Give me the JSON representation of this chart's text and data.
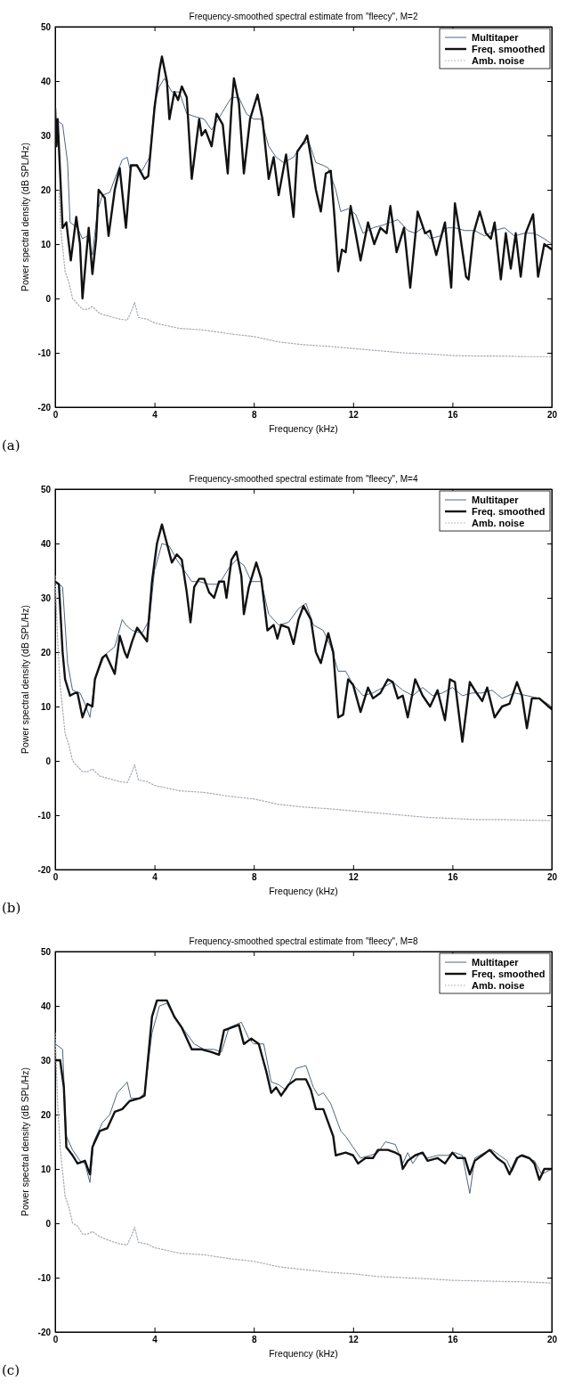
{
  "chart_data": [
    {
      "type": "line",
      "title": "Frequency-smoothed spectral estimate from \"fleecy\", M=2",
      "xlabel": "Frequency (kHz)",
      "ylabel": "Power spectral density (dB SPL/Hz)",
      "annotations": [
        "(a)"
      ],
      "xlim": [
        0,
        20
      ],
      "ylim": [
        -20,
        50
      ],
      "xticks": [
        0,
        4,
        8,
        12,
        16,
        20
      ],
      "yticks": [
        -20,
        -10,
        0,
        10,
        20,
        30,
        40,
        50
      ],
      "legend": "top right",
      "grid": false,
      "series": [
        {
          "name": "Multitaper",
          "color": "#4f6680",
          "line_style": "solid",
          "x": [
            0,
            0.3,
            0.5,
            0.6,
            0.9,
            1.1,
            1.3,
            1.5,
            1.7,
            1.9,
            2.2,
            2.4,
            2.7,
            2.9,
            3.0,
            3.2,
            3.5,
            3.8,
            4.0,
            4.2,
            4.4,
            4.7,
            5.0,
            5.3,
            5.6,
            6.0,
            6.3,
            6.7,
            7.1,
            7.4,
            7.7,
            8.0,
            8.3,
            8.6,
            8.9,
            9.2,
            9.6,
            9.9,
            10.2,
            10.5,
            10.8,
            11.0,
            11.3,
            11.5,
            11.8,
            12.1,
            12.4,
            12.8,
            13.2,
            13.5,
            13.8,
            14.2,
            14.5,
            14.8,
            15.1,
            15.5,
            15.8,
            16.1,
            16.5,
            16.9,
            17.3,
            17.7,
            18.1,
            18.5,
            18.9,
            19.3,
            19.7,
            20
          ],
          "values": [
            33,
            32,
            25,
            14,
            13,
            11,
            11.5,
            8,
            16,
            19,
            19.5,
            22,
            25.5,
            26,
            24,
            24.5,
            23.5,
            26,
            36,
            39,
            40.5,
            38,
            38,
            34,
            33.5,
            33,
            31,
            34,
            37,
            37,
            34,
            33,
            33,
            28,
            26,
            25,
            26,
            28,
            29,
            25,
            24.5,
            24,
            20,
            16,
            16.5,
            15.5,
            12,
            13,
            13.5,
            14,
            14.5,
            12.5,
            12,
            13,
            11,
            11.5,
            13,
            13,
            12.5,
            12.5,
            11.5,
            12.5,
            13,
            11.5,
            12,
            12,
            11,
            10
          ]
        },
        {
          "name": "Freq. smoothed",
          "color": "#111111",
          "line_style": "solid",
          "x": [
            0,
            0.05,
            0.1,
            0.3,
            0.45,
            0.63,
            0.85,
            1.0,
            1.1,
            1.35,
            1.5,
            1.65,
            1.75,
            2.0,
            2.15,
            2.4,
            2.6,
            2.85,
            3.05,
            3.3,
            3.6,
            3.75,
            4.0,
            4.2,
            4.3,
            4.5,
            4.6,
            4.8,
            4.95,
            5.1,
            5.3,
            5.5,
            5.8,
            5.9,
            6.05,
            6.3,
            6.5,
            6.75,
            6.95,
            7.1,
            7.2,
            7.4,
            7.6,
            7.85,
            8.15,
            8.35,
            8.6,
            8.8,
            9.0,
            9.3,
            9.6,
            9.75,
            10.05,
            10.15,
            10.3,
            10.5,
            10.7,
            10.9,
            11.1,
            11.25,
            11.4,
            11.55,
            11.7,
            11.9,
            12.1,
            12.3,
            12.6,
            12.85,
            13.1,
            13.35,
            13.5,
            13.75,
            14.05,
            14.3,
            14.6,
            14.9,
            15.1,
            15.35,
            15.7,
            15.95,
            16.1,
            16.3,
            16.55,
            16.65,
            16.85,
            17.1,
            17.35,
            17.55,
            17.7,
            17.95,
            18.15,
            18.35,
            18.55,
            18.75,
            18.95,
            19.25,
            19.45,
            19.7,
            20
          ],
          "values": [
            35,
            28,
            33,
            13,
            14,
            7,
            15,
            10,
            0,
            13,
            4.5,
            11,
            20,
            18.5,
            11.5,
            20,
            24,
            13,
            24.5,
            24.5,
            22,
            22.5,
            35,
            42,
            44.5,
            40,
            33,
            38,
            36.5,
            39,
            37,
            22,
            33,
            30,
            31,
            28,
            34,
            32,
            23,
            35,
            40.5,
            36,
            23,
            33,
            37.5,
            33,
            22,
            26,
            19,
            26.5,
            15,
            27,
            29,
            30,
            26,
            20,
            16,
            23,
            23.5,
            15,
            5,
            9,
            8.5,
            17,
            12,
            7,
            14,
            10,
            13,
            12,
            17,
            8.5,
            13,
            2,
            16,
            12,
            12.5,
            8,
            14,
            2,
            17.5,
            12,
            4,
            3.5,
            12,
            16,
            12,
            11,
            14,
            3.5,
            12,
            5.5,
            12,
            4,
            12,
            15.5,
            4,
            10,
            9
          ]
        },
        {
          "name": "Amb. noise",
          "color": "#a3aab3",
          "line_style": "dotted",
          "x": [
            0.15,
            0.2,
            0.4,
            0.55,
            0.7,
            0.9,
            1.1,
            1.3,
            1.5,
            1.8,
            2.2,
            2.6,
            2.9,
            3.1,
            3.2,
            3.35,
            3.7,
            4.0,
            5,
            6,
            7,
            8,
            9,
            10,
            11,
            12,
            13,
            14,
            15,
            16,
            17,
            18,
            19,
            20
          ],
          "values": [
            20,
            14,
            5,
            3,
            0,
            -1,
            -2,
            -2,
            -1.5,
            -2.8,
            -3.3,
            -3.8,
            -4,
            -2,
            -0.7,
            -3.5,
            -3.8,
            -4.5,
            -5.5,
            -5.8,
            -6.5,
            -7,
            -8,
            -8.5,
            -8.8,
            -9.2,
            -9.6,
            -10,
            -10.2,
            -10.5,
            -10.6,
            -10.6,
            -10.7,
            -10.7
          ]
        }
      ]
    },
    {
      "type": "line",
      "title": "Frequency-smoothed spectral estimate from \"fleecy\", M=4",
      "xlabel": "Frequency (kHz)",
      "ylabel": "Power spectral density (dB SPL/Hz)",
      "annotations": [
        "(b)"
      ],
      "xlim": [
        0,
        20
      ],
      "ylim": [
        -20,
        50
      ],
      "xticks": [
        0,
        4,
        8,
        12,
        16,
        20
      ],
      "yticks": [
        -20,
        -10,
        0,
        10,
        20,
        30,
        40,
        50
      ],
      "legend": "top right",
      "grid": false,
      "series": [
        {
          "name": "Multitaper",
          "color": "#4f6680",
          "line_style": "solid",
          "x": [
            0,
            0.3,
            0.5,
            0.7,
            1.0,
            1.2,
            1.4,
            1.6,
            2.0,
            2.4,
            2.7,
            2.85,
            3.1,
            3.5,
            3.8,
            4.0,
            4.3,
            4.6,
            4.9,
            5.2,
            5.5,
            5.8,
            6.2,
            6.6,
            7.0,
            7.3,
            7.6,
            7.9,
            8.3,
            8.6,
            9.0,
            9.4,
            9.8,
            10.1,
            10.4,
            10.8,
            11.1,
            11.4,
            11.7,
            12.0,
            12.4,
            12.8,
            13.2,
            13.6,
            14.0,
            14.4,
            14.8,
            15.2,
            15.6,
            16.0,
            16.4,
            16.8,
            17.2,
            17.6,
            18.0,
            18.5,
            19.0,
            19.5,
            20
          ],
          "values": [
            33,
            32,
            18,
            13,
            12.5,
            10.5,
            8,
            15,
            19.5,
            21,
            26,
            25,
            24,
            23.5,
            26,
            35,
            40,
            39.5,
            37,
            35,
            33,
            33,
            32.5,
            32.5,
            35.5,
            37,
            36,
            33,
            33,
            27,
            25,
            25.5,
            28,
            29,
            25,
            24,
            21,
            16.5,
            16.5,
            14,
            12,
            12.5,
            13.5,
            14.5,
            13,
            12,
            13.5,
            12,
            12.5,
            13.5,
            12,
            12.5,
            12.5,
            13,
            11.5,
            12.5,
            12,
            11.5,
            10
          ]
        },
        {
          "name": "Freq. smoothed",
          "color": "#111111",
          "line_style": "solid",
          "x": [
            0,
            0.15,
            0.3,
            0.4,
            0.6,
            0.8,
            0.9,
            1.1,
            1.3,
            1.5,
            1.6,
            1.9,
            2.05,
            2.4,
            2.6,
            2.8,
            2.9,
            3.1,
            3.3,
            3.7,
            3.9,
            4.1,
            4.3,
            4.5,
            4.7,
            4.9,
            5.1,
            5.3,
            5.45,
            5.6,
            5.8,
            6.0,
            6.2,
            6.4,
            6.6,
            6.8,
            6.9,
            7.1,
            7.3,
            7.5,
            7.6,
            7.8,
            8.1,
            8.3,
            8.55,
            8.8,
            8.95,
            9.1,
            9.4,
            9.6,
            9.8,
            10.0,
            10.3,
            10.5,
            10.7,
            11.0,
            11.2,
            11.4,
            11.6,
            11.8,
            12.0,
            12.3,
            12.6,
            12.8,
            13.1,
            13.4,
            13.6,
            13.8,
            14.0,
            14.2,
            14.5,
            14.8,
            15.1,
            15.4,
            15.7,
            15.9,
            16.1,
            16.4,
            16.7,
            16.9,
            17.2,
            17.4,
            17.7,
            18.0,
            18.3,
            18.6,
            18.8,
            19.0,
            19.2,
            19.5,
            20
          ],
          "values": [
            33,
            32.5,
            20,
            15,
            12,
            12.5,
            12.5,
            8,
            10.5,
            10,
            15,
            19,
            19.5,
            16,
            23,
            20,
            19,
            22,
            24.5,
            22,
            33,
            40,
            43.5,
            40,
            36.5,
            38,
            37,
            31,
            25.5,
            32,
            33.5,
            33.5,
            31,
            30,
            33,
            33,
            30,
            37,
            38.5,
            34,
            27,
            32,
            36.5,
            33.5,
            24,
            25,
            22.5,
            25,
            24.5,
            21.5,
            26,
            28.5,
            26,
            20,
            18,
            23.5,
            20,
            8,
            8.5,
            15,
            14,
            9,
            13.5,
            11.5,
            12.5,
            15,
            14.5,
            11.5,
            12,
            8,
            15,
            12,
            10,
            13,
            7.5,
            15,
            14.5,
            3.5,
            14.5,
            13,
            11,
            13.5,
            8,
            10,
            10.5,
            14.5,
            12,
            6,
            11.5,
            11.5,
            9.5
          ]
        },
        {
          "name": "Amb. noise",
          "color": "#a3aab3",
          "line_style": "dotted",
          "x": [
            0,
            0.1,
            0.2,
            0.4,
            0.55,
            0.7,
            0.9,
            1.1,
            1.3,
            1.5,
            1.8,
            2.2,
            2.6,
            2.9,
            3.1,
            3.2,
            3.35,
            3.7,
            4.0,
            5,
            6,
            7,
            8,
            9,
            10,
            11,
            12,
            13,
            14,
            15,
            16,
            17,
            18,
            19,
            20
          ],
          "values": [
            34,
            22,
            14,
            5,
            3,
            0,
            -1,
            -2,
            -2,
            -1.5,
            -2.8,
            -3.3,
            -3.8,
            -4,
            -2,
            -0.7,
            -3.5,
            -3.8,
            -4.5,
            -5.5,
            -5.8,
            -6.5,
            -7,
            -8,
            -8.5,
            -8.8,
            -9.2,
            -9.6,
            -10,
            -10.4,
            -10.6,
            -10.8,
            -10.8,
            -10.9,
            -11
          ]
        }
      ]
    },
    {
      "type": "line",
      "title": "Frequency-smoothed spectral estimate from \"fleecy\", M=8",
      "xlabel": "Frequency (kHz)",
      "ylabel": "Power spectral density (dB SPL/Hz)",
      "annotations": [
        "(c)"
      ],
      "xlim": [
        0,
        20
      ],
      "ylim": [
        -20,
        50
      ],
      "xticks": [
        0,
        4,
        8,
        12,
        16,
        20
      ],
      "yticks": [
        -20,
        -10,
        0,
        10,
        20,
        30,
        40,
        50
      ],
      "legend": "top right",
      "grid": false,
      "series": [
        {
          "name": "Multitaper",
          "color": "#4f6680",
          "line_style": "solid",
          "x": [
            0,
            0.3,
            0.45,
            0.7,
            1.0,
            1.2,
            1.4,
            1.55,
            1.9,
            2.2,
            2.5,
            2.9,
            3.05,
            3.4,
            3.6,
            3.9,
            4.2,
            4.5,
            4.8,
            5.2,
            5.6,
            6.0,
            6.4,
            6.7,
            7.0,
            7.5,
            7.8,
            8.0,
            8.4,
            8.7,
            9.0,
            9.3,
            9.7,
            10.1,
            10.4,
            10.6,
            10.8,
            11.1,
            11.5,
            11.7,
            12.0,
            12.3,
            12.7,
            13.0,
            13.3,
            13.7,
            14.0,
            14.2,
            14.4,
            14.7,
            15.0,
            15.4,
            15.8,
            16.1,
            16.4,
            16.7,
            16.9,
            17.3,
            17.6,
            17.9,
            18.2,
            18.4,
            18.7,
            19.0,
            19.3,
            19.6,
            20
          ],
          "values": [
            33,
            32,
            16,
            13.5,
            11.5,
            11,
            7.5,
            15,
            18.5,
            20,
            24,
            26,
            23,
            23,
            24,
            35,
            40,
            40.5,
            38,
            35.5,
            33,
            32,
            32,
            31.5,
            36,
            37,
            34,
            33,
            33,
            26,
            25.5,
            24.5,
            28.5,
            29,
            25,
            23.5,
            24,
            22,
            17,
            16,
            14,
            12,
            12.5,
            13,
            15,
            14.5,
            11,
            13,
            11,
            13,
            12,
            12.5,
            12.5,
            13,
            12.5,
            5.5,
            12,
            13,
            13.5,
            12.5,
            11.5,
            9.5,
            12.5,
            12,
            11.5,
            9,
            10
          ]
        },
        {
          "name": "Freq. smoothed",
          "color": "#111111",
          "line_style": "solid",
          "x": [
            0,
            0.2,
            0.35,
            0.45,
            0.7,
            0.9,
            1.2,
            1.4,
            1.5,
            1.8,
            2.1,
            2.4,
            2.7,
            3.0,
            3.4,
            3.6,
            3.9,
            4.1,
            4.5,
            4.8,
            5.1,
            5.5,
            5.9,
            6.3,
            6.6,
            6.8,
            7.1,
            7.4,
            7.6,
            7.9,
            8.2,
            8.5,
            8.7,
            8.9,
            9.1,
            9.4,
            9.7,
            10.1,
            10.3,
            10.5,
            10.8,
            11.0,
            11.2,
            11.3,
            11.7,
            12.0,
            12.2,
            12.5,
            12.8,
            13.0,
            13.4,
            13.7,
            13.9,
            14.0,
            14.2,
            14.5,
            14.8,
            15.0,
            15.4,
            15.7,
            16.0,
            16.2,
            16.5,
            16.7,
            16.9,
            17.2,
            17.5,
            17.8,
            18.1,
            18.3,
            18.6,
            18.8,
            19.1,
            19.3,
            19.5,
            19.7,
            20
          ],
          "values": [
            30,
            30,
            25,
            14,
            12.5,
            11,
            11.5,
            9,
            14,
            17,
            17.5,
            20.5,
            21,
            22.5,
            23,
            23.5,
            38,
            41,
            41,
            38,
            36,
            32,
            32,
            31.5,
            31,
            35.5,
            36,
            36.5,
            33,
            34,
            33,
            28,
            24,
            25,
            23.5,
            25.5,
            26.5,
            26.5,
            24.5,
            21,
            21,
            18.5,
            16,
            12.5,
            13,
            12.5,
            11,
            12,
            12,
            13.5,
            13.5,
            13,
            12.5,
            10,
            11.5,
            12.5,
            13,
            11.5,
            12,
            11,
            13,
            12,
            12,
            9,
            11.5,
            12.5,
            13.5,
            12,
            11,
            9,
            12,
            12.5,
            12,
            11,
            8,
            10,
            10
          ]
        },
        {
          "name": "Amb. noise",
          "color": "#a3aab3",
          "line_style": "dotted",
          "x": [
            0,
            0.1,
            0.2,
            0.4,
            0.55,
            0.7,
            0.9,
            1.1,
            1.3,
            1.5,
            1.8,
            2.2,
            2.6,
            2.9,
            3.1,
            3.2,
            3.35,
            3.7,
            4.0,
            5,
            6,
            7,
            8,
            9,
            10,
            11,
            12,
            13,
            14,
            15,
            16,
            17,
            18,
            19,
            20
          ],
          "values": [
            35,
            22,
            14,
            5,
            3,
            0,
            -0.5,
            -2,
            -2,
            -1.5,
            -2.5,
            -3.2,
            -3.8,
            -4,
            -2,
            -0.7,
            -3.5,
            -3.8,
            -4.5,
            -5.5,
            -5.8,
            -6.5,
            -7,
            -8,
            -8.5,
            -9,
            -9.3,
            -9.8,
            -10,
            -10.2,
            -10.5,
            -10.6,
            -10.7,
            -10.8,
            -11
          ]
        }
      ]
    }
  ]
}
